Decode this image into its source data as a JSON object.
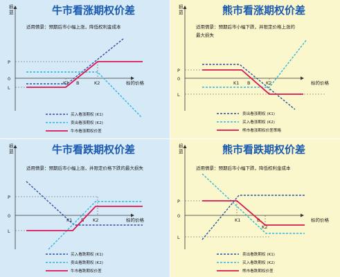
{
  "colors": {
    "blue_panel": "#d6e9f7",
    "yellow_panel": "#fbf7cc",
    "title_blue": "#1a5ab0",
    "long_line": "#2a4fa0",
    "short_line": "#2fb5dc",
    "payoff_line": "#dc1450",
    "axis": "#333333"
  },
  "axis_common": {
    "y_label": "损益",
    "x_label": "标的价格",
    "p_tick": "P",
    "zero_tick": "0",
    "l_tick": "L",
    "k1_tick": "K1",
    "b_tick": "B",
    "k2_tick": "K2"
  },
  "panels": [
    {
      "id": "bull-call",
      "title": "牛市看涨期权价差",
      "scenario": [
        "适用情景：预期后市小幅上涨，降低权利金成本"
      ],
      "legend": [
        "买入看涨期权 (K1)",
        "卖出看涨期权 (K2)",
        "牛市看涨期权价差"
      ]
    },
    {
      "id": "bear-call",
      "title": "熊市看涨期权价差",
      "scenario": [
        "适用情景：预期后市小幅下跌，并限定价格上涨的",
        "最大损失"
      ],
      "legend": [
        "卖出看涨期权 (K1)",
        "买入看涨期权 (K2)",
        "熊市看涨期权价差策略"
      ]
    },
    {
      "id": "bull-put",
      "title": "牛市看跌期权价差",
      "scenario": [
        "适用情景：预期后市小幅上涨，并限定价格下跌的最大损失"
      ],
      "legend": [
        "买入看跌期权 (K1)",
        "卖出看跌期权 (K2)",
        "牛市看跌期权价差"
      ]
    },
    {
      "id": "bear-put",
      "title": "熊市看跌期权价差",
      "scenario": [
        "适用情景：预期后市小幅下跌，降低权利金成本"
      ],
      "legend": [
        "卖出看跌期权 (K1)",
        "买入看跌期权 (K2)",
        "熊市看跌期权价差"
      ]
    }
  ]
}
